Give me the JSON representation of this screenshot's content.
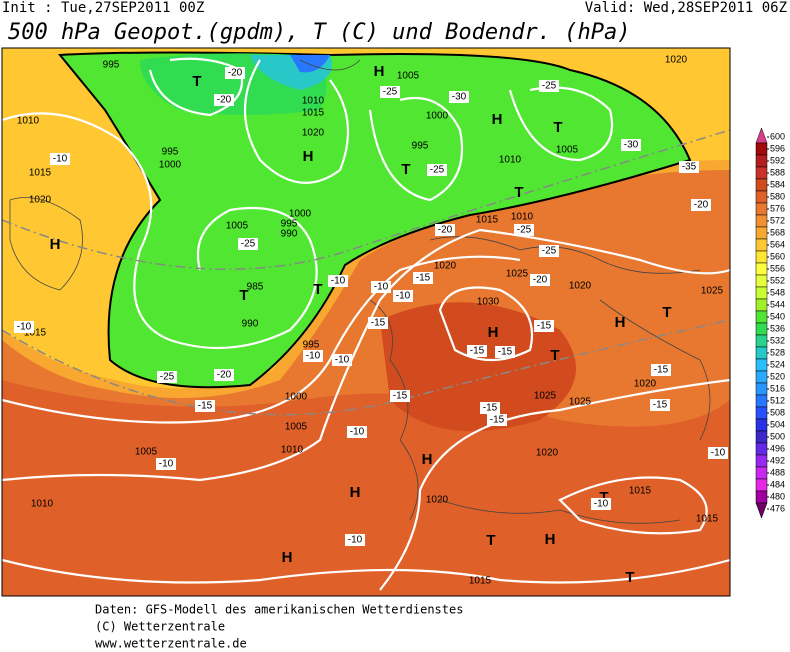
{
  "header": {
    "init": "Init : Tue,27SEP2011 00Z",
    "valid": "Valid: Wed,28SEP2011 06Z",
    "title": "500 hPa Geopot.(gpdm), T (C) und Bodendr. (hPa)"
  },
  "colorbar": {
    "ticks": [
      600,
      596,
      592,
      588,
      584,
      580,
      576,
      572,
      568,
      564,
      560,
      556,
      552,
      548,
      544,
      540,
      536,
      532,
      528,
      524,
      520,
      516,
      512,
      508,
      504,
      500,
      496,
      492,
      488,
      484,
      480,
      476
    ],
    "colors": [
      "#dc3c8c",
      "#a00a0a",
      "#b41e1e",
      "#c83228",
      "#d24b1e",
      "#e0602a",
      "#e87830",
      "#f09030",
      "#f8a830",
      "#ffc832",
      "#ffe632",
      "#ffff40",
      "#e6ff3c",
      "#c8ff32",
      "#a0f028",
      "#50e632",
      "#32dc50",
      "#28d28c",
      "#28c8c8",
      "#28beff",
      "#28aaff",
      "#2896ff",
      "#2878ff",
      "#2850ff",
      "#2832e6",
      "#3c28c8",
      "#6428e6",
      "#9628f0",
      "#c828f0",
      "#e628e6",
      "#a000a0",
      "#6e0064"
    ]
  },
  "map": {
    "labels": [
      "H",
      "H",
      "H",
      "H",
      "H",
      "H",
      "H",
      "H",
      "H",
      "H",
      "T",
      "T",
      "T",
      "T",
      "T",
      "T",
      "T",
      "T",
      "T",
      "T",
      "T",
      "1005",
      "1010",
      "1015",
      "1020",
      "1000",
      "995",
      "1005",
      "1010",
      "995",
      "1000",
      "1015",
      "1020",
      "1010",
      "1000",
      "995",
      "990",
      "1005",
      "985",
      "990",
      "995",
      "1000",
      "1005",
      "1010",
      "1005",
      "1010",
      "1015",
      "1015",
      "1010",
      "1020",
      "1025",
      "1030",
      "1020",
      "1025",
      "1025",
      "1020",
      "1020",
      "1020",
      "1015",
      "1015",
      "1015",
      "1025",
      "1020",
      "995",
      "-25",
      "-30",
      "-25",
      "-30",
      "-35",
      "-20",
      "-25",
      "-20",
      "-25",
      "-25",
      "-20",
      "-15",
      "-10",
      "-10",
      "-10",
      "-25",
      "-10",
      "-10",
      "-15",
      "-15",
      "-15",
      "-15",
      "-15",
      "-10",
      "-15",
      "-15",
      "-10",
      "-10",
      "-15",
      "-20",
      "-25",
      "-10",
      "-10",
      "-10",
      "-10",
      "-15",
      "-20",
      "-20",
      "-15"
    ]
  },
  "footer": {
    "lines": [
      "Daten: GFS-Modell des amerikanischen Wetterdienstes",
      "(C) Wetterzentrale",
      "www.wetterzentrale.de"
    ]
  }
}
